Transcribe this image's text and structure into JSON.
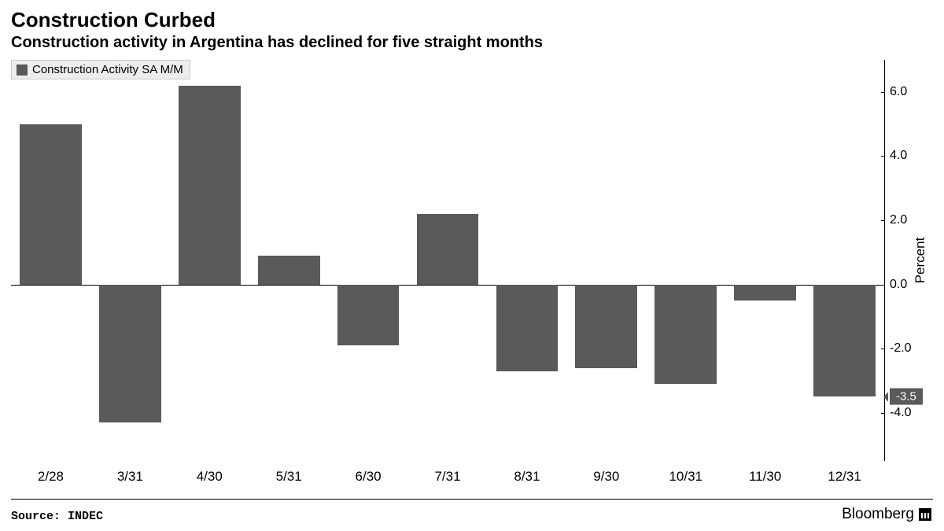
{
  "title": "Construction Curbed",
  "subtitle": "Construction activity in Argentina has declined for five straight months",
  "legend_label": "Construction Activity SA M/M",
  "source_label": "Source: INDEC",
  "brand": "Bloomberg",
  "chart": {
    "type": "bar",
    "bar_color": "#5a5a5a",
    "background_color": "#ffffff",
    "y_axis_title": "Percent",
    "y_min": -5.5,
    "y_max": 7.0,
    "y_ticks": [
      -4.0,
      -2.0,
      0.0,
      2.0,
      4.0,
      6.0
    ],
    "y_tick_labels": [
      "-4.0",
      "-2.0",
      "0.0",
      "2.0",
      "4.0",
      "6.0"
    ],
    "categories": [
      "2/28",
      "3/31",
      "4/30",
      "5/31",
      "6/30",
      "7/31",
      "8/31",
      "9/30",
      "10/31",
      "11/30",
      "12/31"
    ],
    "values": [
      5.0,
      -4.3,
      6.2,
      0.9,
      -1.9,
      2.2,
      -2.7,
      -2.6,
      -3.1,
      -0.5,
      -3.5
    ],
    "bar_width_ratio": 0.78,
    "callout_value": "-3.5",
    "callout_bg": "#5a5a5a",
    "title_fontsize": 26,
    "subtitle_fontsize": 20,
    "axis_label_fontsize": 17
  }
}
